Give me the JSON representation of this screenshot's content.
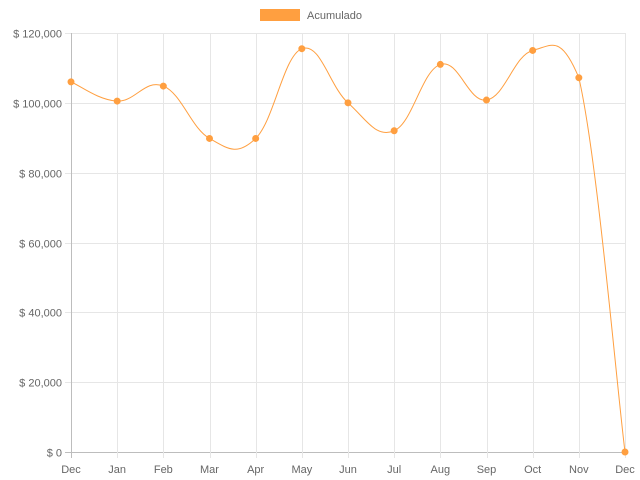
{
  "chart_data": {
    "type": "line",
    "categories": [
      "Dec",
      "Jan",
      "Feb",
      "Mar",
      "Apr",
      "May",
      "Jun",
      "Jul",
      "Aug",
      "Sep",
      "Oct",
      "Nov",
      "Dec"
    ],
    "series": [
      {
        "name": "Acumulado",
        "values": [
          106000,
          100500,
          104800,
          89800,
          89800,
          115500,
          100000,
          92000,
          111000,
          100800,
          115000,
          107200,
          0
        ]
      }
    ],
    "ylim": [
      0,
      120000
    ],
    "yticks": [
      0,
      20000,
      40000,
      60000,
      80000,
      100000,
      120000
    ],
    "ytick_labels": [
      "$ 0",
      "$ 20,000",
      "$ 40,000",
      "$ 60,000",
      "$ 80,000",
      "$ 100,000",
      "$ 120,000"
    ],
    "grid": true,
    "legend_position": "top-center",
    "colors": {
      "series": "#ff9f40",
      "grid": "#e6e6e6",
      "text": "#666666"
    }
  }
}
